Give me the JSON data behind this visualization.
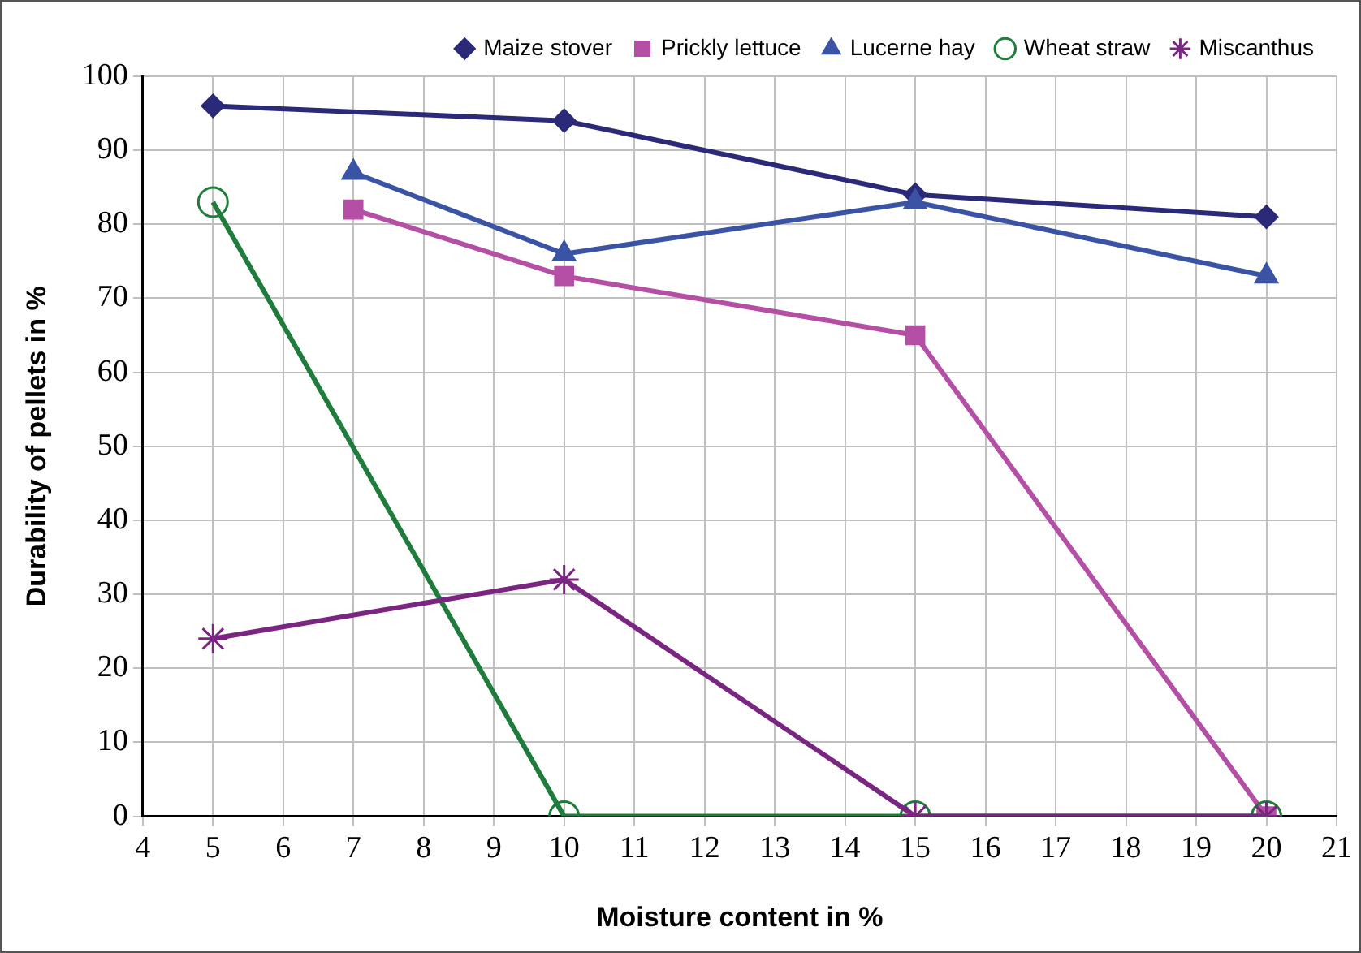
{
  "chart_data": {
    "type": "line",
    "xlabel": "Moisture content in %",
    "ylabel": "Durability of pellets in %",
    "xlim": [
      4,
      21
    ],
    "xticks": [
      4,
      5,
      6,
      7,
      8,
      9,
      10,
      11,
      12,
      13,
      14,
      15,
      16,
      17,
      18,
      19,
      20,
      21
    ],
    "ylim": [
      0,
      100
    ],
    "yticks": [
      0,
      10,
      20,
      30,
      40,
      50,
      60,
      70,
      80,
      90,
      100
    ],
    "grid": true,
    "legend": "top",
    "line_style": "solid",
    "series": [
      {
        "name": "Maize stover",
        "color": "#2a2a78",
        "marker": "diamond",
        "x": [
          5,
          10,
          15,
          20
        ],
        "values": [
          96,
          94,
          84,
          81
        ]
      },
      {
        "name": "Prickly lettuce",
        "color": "#b54fa5",
        "marker": "square",
        "x": [
          7,
          10,
          15,
          20
        ],
        "values": [
          82,
          73,
          65,
          0
        ]
      },
      {
        "name": "Lucerne hay",
        "color": "#3a53a4",
        "marker": "triangle",
        "x": [
          7,
          10,
          15,
          20
        ],
        "values": [
          87,
          76,
          83,
          73
        ]
      },
      {
        "name": "Wheat straw",
        "color": "#1e7d3a",
        "marker": "circle",
        "x": [
          5,
          10,
          15,
          20
        ],
        "values": [
          83,
          0,
          0,
          0
        ]
      },
      {
        "name": "Miscanthus",
        "color": "#7b2583",
        "marker": "cross",
        "x": [
          5,
          10,
          15,
          20
        ],
        "values": [
          24,
          32,
          0,
          0
        ]
      }
    ]
  }
}
